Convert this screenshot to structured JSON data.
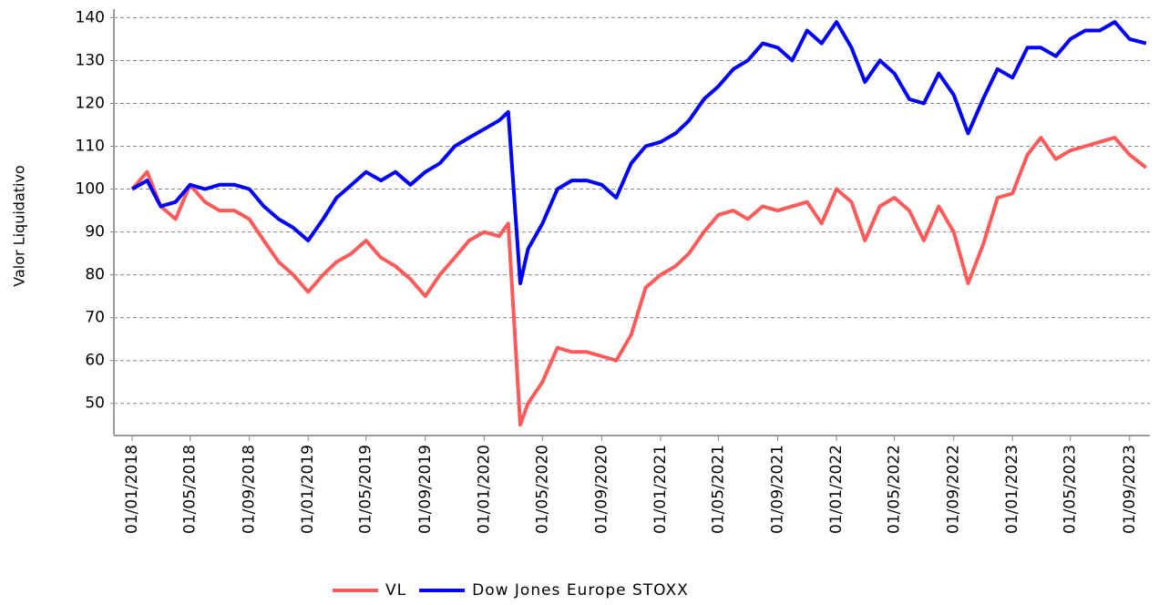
{
  "chart_data": {
    "type": "line",
    "y_label": "Valor Liquidativo",
    "x": [
      "2018-01-01",
      "2018-02-01",
      "2018-03-01",
      "2018-04-01",
      "2018-05-01",
      "2018-06-01",
      "2018-07-01",
      "2018-08-01",
      "2018-09-01",
      "2018-10-01",
      "2018-11-01",
      "2018-12-01",
      "2019-01-01",
      "2019-02-01",
      "2019-03-01",
      "2019-04-01",
      "2019-05-01",
      "2019-06-01",
      "2019-07-01",
      "2019-08-01",
      "2019-09-01",
      "2019-10-01",
      "2019-11-01",
      "2019-12-01",
      "2020-01-01",
      "2020-02-01",
      "2020-02-20",
      "2020-03-16",
      "2020-04-01",
      "2020-05-01",
      "2020-06-01",
      "2020-07-01",
      "2020-08-01",
      "2020-09-01",
      "2020-10-01",
      "2020-11-01",
      "2020-12-01",
      "2021-01-01",
      "2021-02-01",
      "2021-03-01",
      "2021-04-01",
      "2021-05-01",
      "2021-06-01",
      "2021-07-01",
      "2021-08-01",
      "2021-09-01",
      "2021-10-01",
      "2021-11-01",
      "2021-12-01",
      "2022-01-01",
      "2022-02-01",
      "2022-03-01",
      "2022-04-01",
      "2022-05-01",
      "2022-06-01",
      "2022-07-01",
      "2022-08-01",
      "2022-09-01",
      "2022-10-01",
      "2022-11-01",
      "2022-12-01",
      "2023-01-01",
      "2023-02-01",
      "2023-03-01",
      "2023-04-01",
      "2023-05-01",
      "2023-06-01",
      "2023-07-01",
      "2023-08-01",
      "2023-09-01",
      "2023-10-05"
    ],
    "series": [
      {
        "name": "VL",
        "color": "#ff5a5a",
        "values": [
          100,
          104,
          96,
          93,
          101,
          97,
          95,
          95,
          93,
          88,
          83,
          80,
          76,
          80,
          83,
          85,
          88,
          84,
          82,
          79,
          75,
          80,
          84,
          88,
          90,
          89,
          92,
          45,
          50,
          55,
          63,
          62,
          62,
          61,
          60,
          66,
          77,
          80,
          82,
          85,
          90,
          94,
          95,
          93,
          96,
          95,
          96,
          97,
          92,
          100,
          97,
          88,
          96,
          98,
          95,
          88,
          96,
          90,
          78,
          87,
          98,
          99,
          108,
          112,
          107,
          109,
          110,
          111,
          112,
          108,
          105
        ]
      },
      {
        "name": "Dow Jones Europe STOXX",
        "color": "#0000ff",
        "values": [
          100,
          102,
          96,
          97,
          101,
          100,
          101,
          101,
          100,
          96,
          93,
          91,
          88,
          93,
          98,
          101,
          104,
          102,
          104,
          101,
          104,
          106,
          110,
          112,
          114,
          116,
          118,
          78,
          86,
          92,
          100,
          102,
          102,
          101,
          98,
          106,
          110,
          111,
          113,
          116,
          121,
          124,
          128,
          130,
          134,
          133,
          130,
          137,
          134,
          139,
          133,
          125,
          130,
          127,
          121,
          120,
          127,
          122,
          113,
          121,
          128,
          126,
          133,
          133,
          131,
          135,
          137,
          137,
          139,
          135,
          134
        ]
      }
    ],
    "xlim": [
      "2017-11-24",
      "2023-10-13"
    ],
    "xticks": [
      {
        "value": "2018-01-01",
        "label": "01/01/2018"
      },
      {
        "value": "2018-05-01",
        "label": "01/05/2018"
      },
      {
        "value": "2018-09-01",
        "label": "01/09/2018"
      },
      {
        "value": "2019-01-01",
        "label": "01/01/2019"
      },
      {
        "value": "2019-05-01",
        "label": "01/05/2019"
      },
      {
        "value": "2019-09-01",
        "label": "01/09/2019"
      },
      {
        "value": "2020-01-01",
        "label": "01/01/2020"
      },
      {
        "value": "2020-05-01",
        "label": "01/05/2020"
      },
      {
        "value": "2020-09-01",
        "label": "01/09/2020"
      },
      {
        "value": "2021-01-01",
        "label": "01/01/2021"
      },
      {
        "value": "2021-05-01",
        "label": "01/05/2021"
      },
      {
        "value": "2021-09-01",
        "label": "01/09/2021"
      },
      {
        "value": "2022-01-01",
        "label": "01/01/2022"
      },
      {
        "value": "2022-05-01",
        "label": "01/05/2022"
      },
      {
        "value": "2022-09-01",
        "label": "01/09/2022"
      },
      {
        "value": "2023-01-01",
        "label": "01/01/2023"
      },
      {
        "value": "2023-05-01",
        "label": "01/05/2023"
      },
      {
        "value": "2023-09-01",
        "label": "01/09/2023"
      }
    ],
    "ylim": [
      42.5,
      142
    ],
    "yticks": [
      50,
      60,
      70,
      80,
      90,
      100,
      110,
      120,
      130,
      140
    ],
    "grid": true,
    "legend": "bottom"
  }
}
